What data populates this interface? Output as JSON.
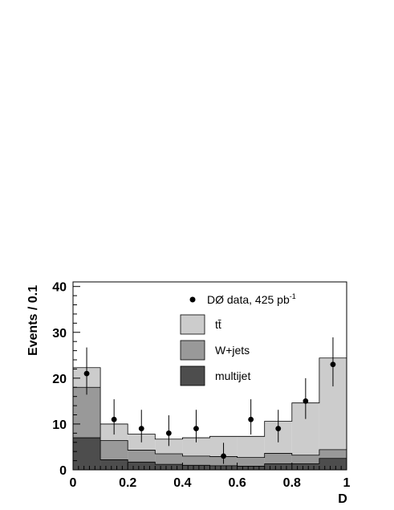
{
  "chart_data": {
    "type": "bar",
    "subtype": "stacked-histogram",
    "xlabel": "D",
    "ylabel": "Events / 0.1",
    "xlim": [
      0,
      1
    ],
    "ylim": [
      0,
      41
    ],
    "x_ticks": [
      "0",
      "0.2",
      "0.4",
      "0.6",
      "0.8",
      "1"
    ],
    "y_ticks": [
      "0",
      "10",
      "20",
      "30",
      "40"
    ],
    "bin_edges": [
      0,
      0.1,
      0.2,
      0.3,
      0.4,
      0.5,
      0.6,
      0.7,
      0.8,
      0.9,
      1.0
    ],
    "series": [
      {
        "name": "multijet",
        "color": "#4d4d4d",
        "values": [
          7.0,
          2.2,
          1.7,
          1.2,
          1.0,
          0.9,
          0.8,
          1.3,
          1.3,
          2.5
        ]
      },
      {
        "name": "W+jets",
        "color": "#999999",
        "values": [
          11.0,
          4.2,
          2.6,
          2.3,
          2.0,
          2.0,
          1.9,
          2.3,
          1.9,
          1.9
        ]
      },
      {
        "name": "tt̄",
        "color": "#cccccc",
        "values": [
          4.3,
          3.6,
          3.5,
          3.2,
          4.0,
          4.4,
          4.6,
          7.0,
          11.4,
          20.0
        ]
      }
    ],
    "data_points": {
      "name": "DØ data, 425 pb",
      "name_sup": "-1",
      "x": [
        0.05,
        0.15,
        0.25,
        0.35,
        0.45,
        0.55,
        0.65,
        0.75,
        0.85,
        0.95
      ],
      "y": [
        21,
        11,
        9,
        8,
        9,
        3,
        11,
        9,
        15,
        23
      ],
      "yerr_low": [
        4.6,
        3.3,
        3.0,
        2.8,
        3.0,
        1.7,
        3.3,
        3.0,
        3.9,
        4.8
      ],
      "yerr_high": [
        5.7,
        4.4,
        4.1,
        3.9,
        4.1,
        2.9,
        4.4,
        4.1,
        5.0,
        5.9
      ]
    },
    "legend": [
      "DØ data, 425 pb-1",
      "tt̄",
      "W+jets",
      "multijet"
    ],
    "legend_placement": "top-right",
    "grid": false
  }
}
